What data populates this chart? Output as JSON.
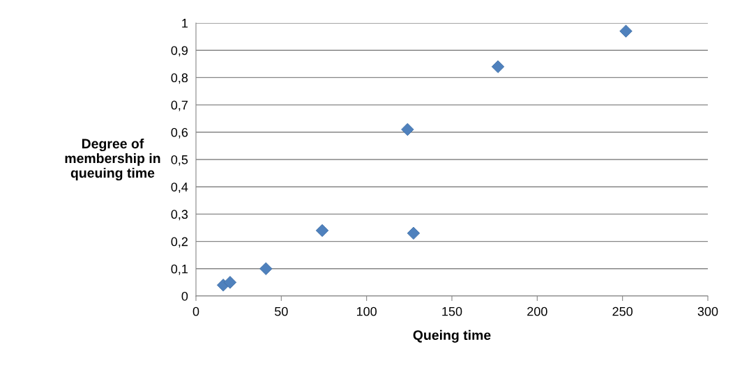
{
  "chart_data": {
    "type": "scatter",
    "xlabel": "Queing time",
    "ylabel": "Degree of\nmembership in\nqueuing time",
    "x": [
      16,
      20,
      41,
      74,
      124,
      127.5,
      177,
      252
    ],
    "series": [
      {
        "color": "#4f81bd",
        "values": [
          0.04,
          0.05,
          0.1,
          0.24,
          0.61,
          0.23,
          0.84,
          0.97
        ]
      }
    ],
    "xlim": [
      0,
      300
    ],
    "xticks": [
      0,
      50,
      100,
      150,
      200,
      250,
      300
    ],
    "ylim": [
      0,
      1
    ],
    "yticks": [
      0,
      {
        "value": 0.1,
        "label": "0,1"
      },
      {
        "value": 0.2,
        "label": "0,2"
      },
      {
        "value": 0.3,
        "label": "0,3"
      },
      {
        "value": 0.4,
        "label": "0,4"
      },
      {
        "value": 0.5,
        "label": "0,5"
      },
      {
        "value": 0.6,
        "label": "0,6"
      },
      {
        "value": 0.7,
        "label": "0,7"
      },
      {
        "value": 0.8,
        "label": "0,8"
      },
      {
        "value": 0.9,
        "label": "0,9"
      },
      1
    ],
    "grid": "y",
    "marker": "diamond",
    "legend": false
  }
}
